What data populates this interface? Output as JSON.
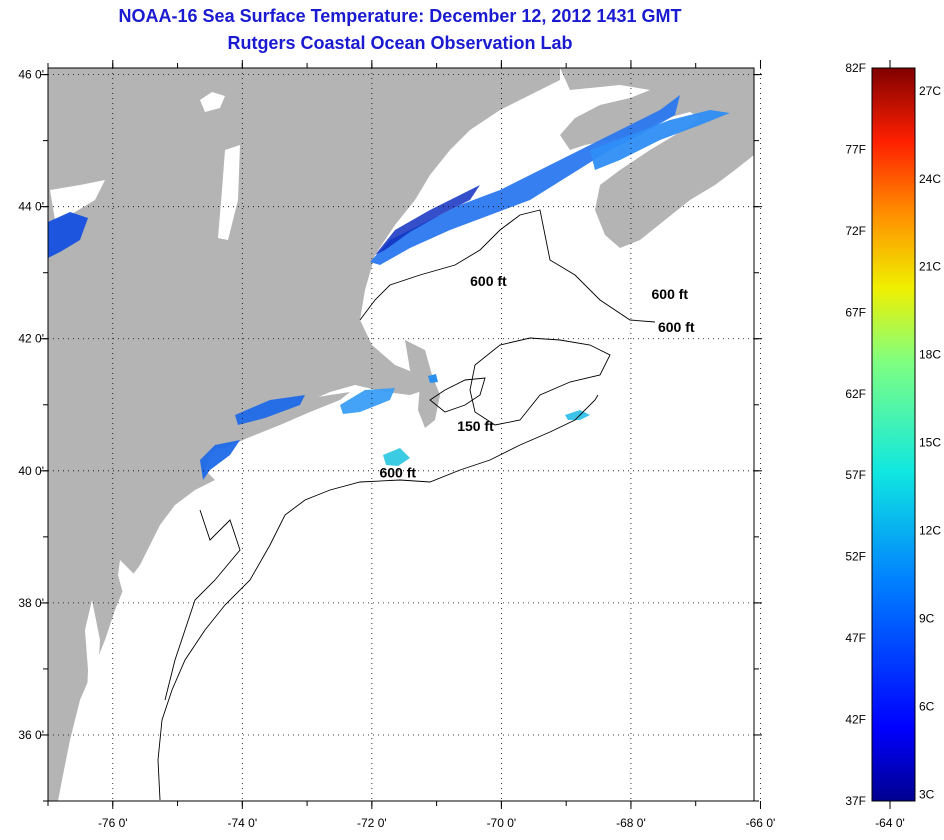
{
  "title": {
    "line1": "NOAA-16 Sea Surface Temperature:  December 12, 2012 1431 GMT",
    "line2": "Rutgers Coastal Ocean Observation Lab"
  },
  "axes": {
    "lat_labels": [
      "46 0'",
      "44 0'",
      "42 0'",
      "40 0'",
      "38 0'",
      "36 0'"
    ],
    "lon_labels": [
      "-76 0'",
      "-74 0'",
      "-72 0'",
      "-70 0'",
      "-68 0'",
      "-66 0'",
      "-64 0'"
    ],
    "lat_values": [
      46,
      44,
      42,
      40,
      38,
      36
    ],
    "lon_values": [
      -76,
      -74,
      -72,
      -70,
      -68,
      -66,
      -64
    ],
    "lat_range": [
      35,
      46.1
    ],
    "lon_range": [
      -77,
      -66.1
    ]
  },
  "contour_labels": [
    {
      "text": "600 ft",
      "lon": -70.2,
      "lat": 42.8
    },
    {
      "text": "600 ft",
      "lon": -67.4,
      "lat": 42.6
    },
    {
      "text": "600 ft",
      "lon": -67.3,
      "lat": 42.1
    },
    {
      "text": "150 ft",
      "lon": -70.4,
      "lat": 40.6
    },
    {
      "text": "600 ft",
      "lon": -71.6,
      "lat": 39.9
    }
  ],
  "colorbar": {
    "f_labels": [
      "82F",
      "77F",
      "72F",
      "67F",
      "62F",
      "57F",
      "52F",
      "47F",
      "42F",
      "37F"
    ],
    "c_labels": [
      "27C",
      "24C",
      "21C",
      "18C",
      "15C",
      "12C",
      "9C",
      "6C",
      "3C"
    ],
    "colors": {
      "cold": "#00008f",
      "cool": "#0060ff",
      "mid": "#10e8e0",
      "warm": "#f0f000",
      "hot": "#ff4000",
      "max": "#800000"
    }
  },
  "colors": {
    "land": "#b4b4b4",
    "ocean": "#ffffff",
    "title": "#1a1ad0"
  }
}
